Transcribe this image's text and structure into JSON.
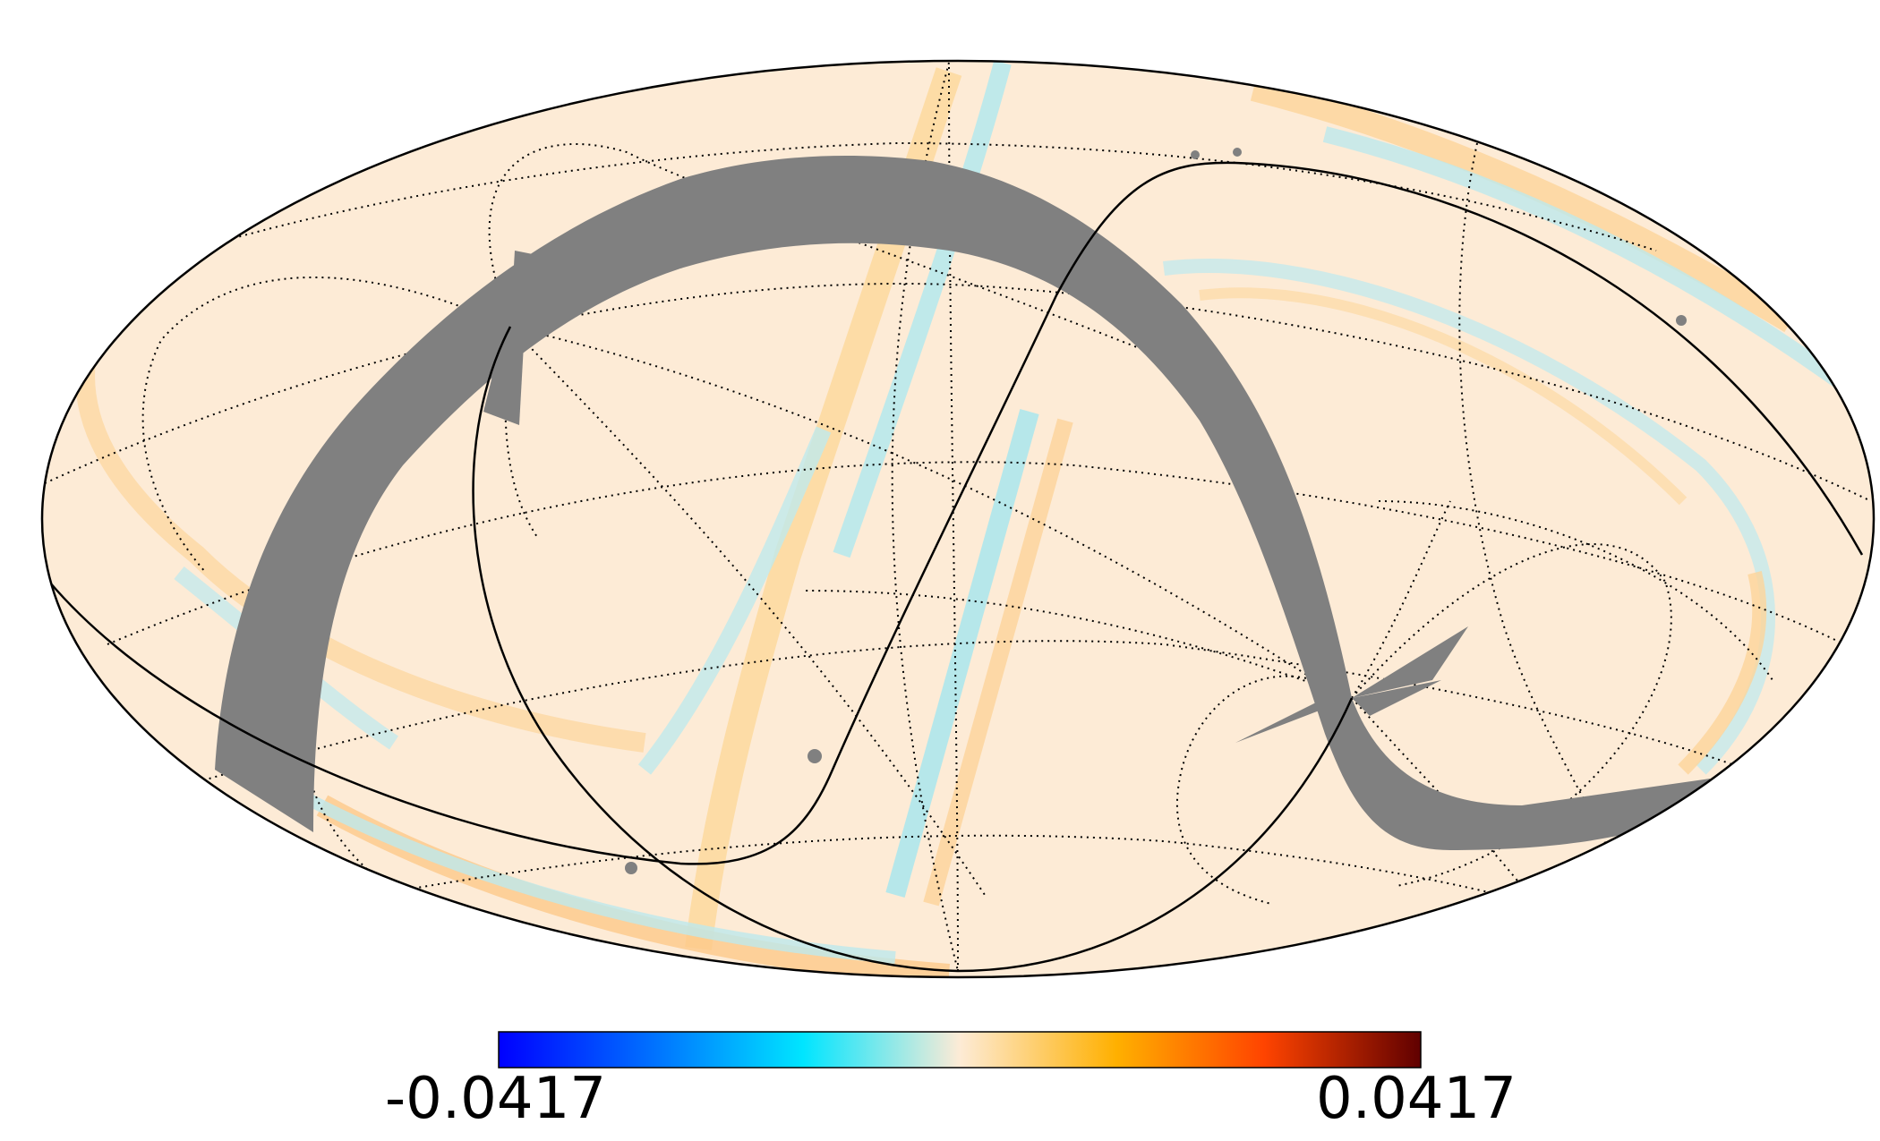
{
  "map": {
    "projection": "mollweide",
    "graticule": "dotted",
    "mask_color": "#808080",
    "background_color": "#fdebd6",
    "outline_color": "#000000"
  },
  "colorbar": {
    "min_label": "-0.0417",
    "max_label": "0.0417",
    "min_value": -0.0417,
    "max_value": 0.0417,
    "colors": [
      "#0000ff",
      "#0073ff",
      "#00e5ff",
      "#fdebd6",
      "#ffb000",
      "#ff4400",
      "#600000"
    ]
  }
}
